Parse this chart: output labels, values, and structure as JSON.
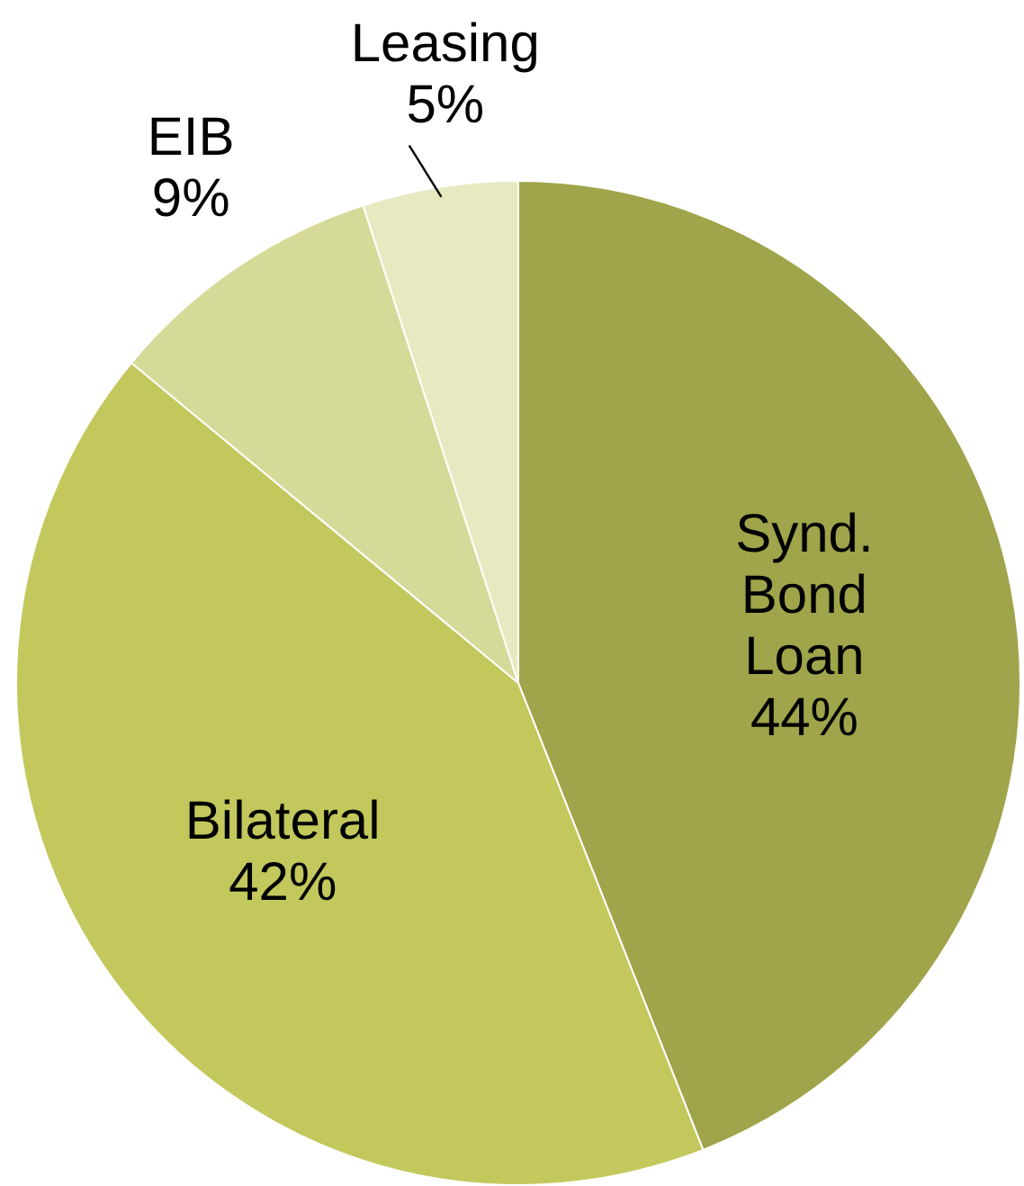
{
  "chart_data": {
    "type": "pie",
    "categories": [
      "Synd. Bond Loan",
      "Bilateral",
      "EIB",
      "Leasing"
    ],
    "values": [
      44,
      42,
      9,
      5
    ],
    "value_labels": [
      "44%",
      "42%",
      "9%",
      "5%"
    ],
    "colors": [
      "#a0a44a",
      "#c3c85c",
      "#d6da98",
      "#e7e9c0"
    ],
    "legend": false
  }
}
